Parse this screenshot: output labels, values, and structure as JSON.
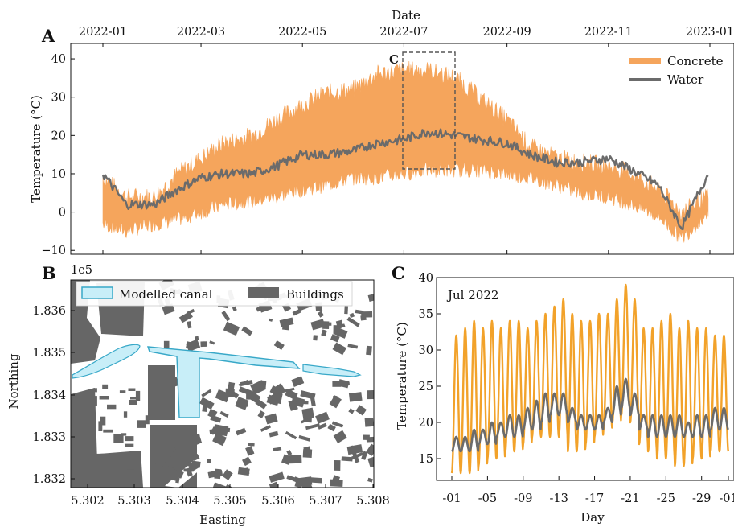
{
  "colors": {
    "concrete": "#f5a55c",
    "concrete_dark": "#f2a22a",
    "water": "#6b6b6b",
    "canal_fill": "#c8eef8",
    "canal_edge": "#38a8c8",
    "buildings": "#666666"
  },
  "panelA": {
    "label": "A",
    "top_label": "Date",
    "ylabel": "Temperature (°C)",
    "callout": "C",
    "legend": [
      "Concrete",
      "Water"
    ],
    "date_ticks": [
      "2022-01",
      "2022-03",
      "2022-05",
      "2022-07",
      "2022-09",
      "2022-11",
      "2023-01"
    ],
    "y_ticks": [
      "40",
      "30",
      "20",
      "10",
      "0",
      "−10"
    ]
  },
  "panelB": {
    "label": "B",
    "offset_text": "1e5",
    "xlabel": "Easting",
    "ylabel": "Northing",
    "legend": [
      "Modelled canal",
      "Buildings"
    ],
    "x_ticks": [
      "5.302",
      "5.303",
      "5.304",
      "5.305",
      "5.306",
      "5.307",
      "5.308"
    ],
    "y_ticks": [
      "1.836",
      "1.835",
      "1.834",
      "1.833",
      "1.832"
    ]
  },
  "panelC": {
    "label": "C",
    "annotation": "Jul 2022",
    "xlabel": "Day",
    "ylabel": "Temperature (°C)",
    "x_ticks": [
      "-01",
      "-05",
      "-09",
      "-13",
      "-17",
      "-21",
      "-25",
      "-29",
      "-01"
    ],
    "y_ticks": [
      "40",
      "35",
      "30",
      "25",
      "20",
      "15"
    ]
  },
  "chart_data": [
    {
      "type": "area",
      "panel": "A",
      "xlabel": "Date",
      "ylabel": "Temperature (°C)",
      "ylim": [
        -11,
        44
      ],
      "x": [
        "2022-01-01",
        "2022-01-15",
        "2022-02-01",
        "2022-02-15",
        "2022-03-01",
        "2022-03-15",
        "2022-04-01",
        "2022-04-15",
        "2022-05-01",
        "2022-05-15",
        "2022-06-01",
        "2022-06-15",
        "2022-07-01",
        "2022-07-15",
        "2022-08-01",
        "2022-08-15",
        "2022-09-01",
        "2022-09-15",
        "2022-10-01",
        "2022-10-15",
        "2022-11-01",
        "2022-11-15",
        "2022-12-01",
        "2022-12-15",
        "2022-12-31"
      ],
      "series": [
        {
          "name": "Concrete",
          "kind": "band",
          "low": [
            -3,
            -5,
            -3,
            -2,
            0,
            2,
            3,
            4,
            6,
            7,
            9,
            9,
            10,
            11,
            11,
            11,
            10,
            9,
            7,
            5,
            4,
            2,
            -1,
            -7,
            0
          ],
          "high": [
            9,
            4,
            4,
            10,
            14,
            18,
            20,
            24,
            28,
            31,
            32,
            36,
            37,
            37,
            35,
            30,
            24,
            17,
            14,
            13,
            12,
            10,
            6,
            0,
            4
          ]
        },
        {
          "name": "Water",
          "kind": "line",
          "values": [
            10,
            2,
            2,
            6,
            9,
            10,
            10,
            12,
            15,
            15,
            16,
            18,
            19,
            21,
            20,
            19,
            18,
            15,
            13,
            13,
            14,
            11,
            7,
            -4,
            10
          ]
        }
      ]
    },
    {
      "type": "line",
      "panel": "C",
      "xlabel": "Day",
      "ylabel": "Temperature (°C)",
      "ylim": [
        12,
        40
      ],
      "x_range_days": [
        1,
        32
      ],
      "series": [
        {
          "name": "Concrete",
          "day_max": [
            32,
            33,
            34,
            33,
            34,
            33,
            34,
            34,
            33,
            34,
            35,
            36,
            37,
            35,
            34,
            34,
            35,
            35,
            37,
            39,
            37,
            33,
            33,
            34,
            35,
            33,
            34,
            33,
            33,
            32,
            32
          ],
          "day_min": [
            13,
            13,
            13,
            14,
            15,
            15,
            16,
            16,
            17,
            18,
            18,
            18,
            18,
            16,
            16,
            17,
            18,
            19,
            20,
            21,
            20,
            17,
            16,
            15,
            15,
            14,
            14,
            15,
            15,
            16,
            16
          ]
        },
        {
          "name": "Water",
          "day_max": [
            18,
            18,
            19,
            19,
            20,
            20,
            21,
            21,
            22,
            23,
            24,
            24,
            24,
            22,
            21,
            21,
            21,
            22,
            25,
            26,
            24,
            21,
            21,
            21,
            21,
            21,
            20,
            21,
            21,
            22,
            22
          ],
          "day_min": [
            16,
            16,
            16,
            17,
            17,
            18,
            18,
            18,
            19,
            19,
            20,
            21,
            21,
            20,
            19,
            19,
            19,
            20,
            21,
            22,
            21,
            19,
            18,
            18,
            18,
            18,
            18,
            18,
            18,
            19,
            19
          ]
        }
      ]
    }
  ]
}
